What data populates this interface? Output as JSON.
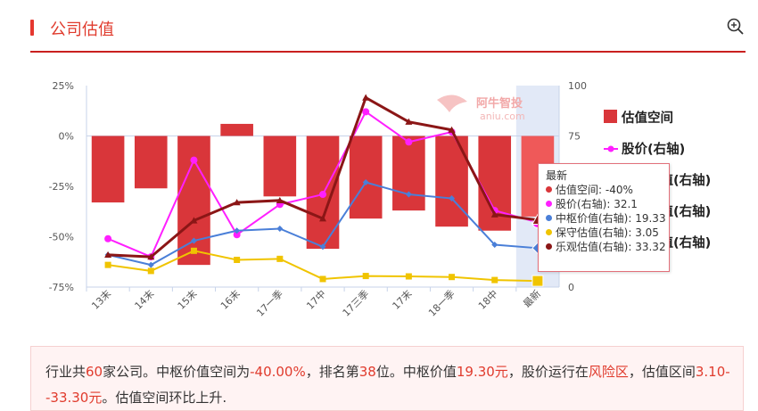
{
  "header": {
    "title": "公司估值"
  },
  "chart_data": {
    "type": "bar",
    "categories": [
      "13末",
      "14末",
      "15末",
      "16末",
      "17一季",
      "17中",
      "17三季",
      "17末",
      "18一季",
      "18中",
      "最新"
    ],
    "left_axis": {
      "ticks": [
        "25%",
        "0%",
        "-25%",
        "-50%",
        "-75%"
      ],
      "range": [
        -75,
        25
      ]
    },
    "right_axis": {
      "ticks": [
        "100",
        "75",
        "50",
        "25",
        "0"
      ],
      "range": [
        0,
        100
      ]
    },
    "series": [
      {
        "name": "估值空间",
        "type": "bar",
        "axis": "left",
        "color": "#d9363a",
        "values": [
          -33,
          -26,
          -64,
          6,
          -30,
          -56,
          -41,
          -37,
          -45,
          -47,
          -40
        ]
      },
      {
        "name": "股价(右轴)",
        "type": "line",
        "axis": "right",
        "color": "#ff1fff",
        "values": [
          24,
          15,
          63,
          26,
          41,
          46,
          87,
          72,
          77,
          38,
          32.1
        ]
      },
      {
        "name": "中枢价值(右轴)",
        "type": "line",
        "axis": "right",
        "color": "#4a7fd8",
        "values": [
          16,
          11,
          23,
          28,
          29,
          20,
          52,
          46,
          44,
          21,
          19.33
        ]
      },
      {
        "name": "保守估值(右轴)",
        "type": "line",
        "axis": "right",
        "color": "#f0c400",
        "values": [
          11,
          8,
          18,
          13.5,
          14,
          4,
          5.5,
          5.3,
          5,
          3.5,
          3.05
        ]
      },
      {
        "name": "乐观估值(右轴)",
        "type": "line",
        "axis": "right",
        "color": "#8b1616",
        "values": [
          16,
          15,
          33,
          42,
          43,
          34,
          94,
          82,
          78,
          36,
          33.32
        ]
      }
    ],
    "legend": [
      "估值空间",
      "股价(右轴)",
      "中枢价值(右轴)",
      "保守估值(右轴)",
      "乐观估值(右轴)"
    ],
    "legend_position": "right",
    "watermark": {
      "brand": "阿牛智投",
      "site": "aniu.com"
    },
    "highlighted_category": "最新",
    "tooltip": {
      "title": "最新",
      "rows": [
        {
          "label": "估值空间: -40%",
          "color": "#d9363a"
        },
        {
          "label": "股价(右轴): 32.1",
          "color": "#ff1fff"
        },
        {
          "label": "中枢价值(右轴): 19.33",
          "color": "#4a7fd8"
        },
        {
          "label": "保守估值(右轴): 3.05",
          "color": "#f0c400"
        },
        {
          "label": "乐观估值(右轴): 33.32",
          "color": "#8b1616"
        }
      ]
    }
  },
  "summary": {
    "p1": "行业共",
    "count": "60",
    "p2": "家公司。中枢价值空间为",
    "space": "-40.00%",
    "p3": "，排名第",
    "rank": "38",
    "p4": "位。中枢价值",
    "value": "19.30元",
    "p5": "，股价运行在",
    "zone": "风险区",
    "p6": "，估值区间",
    "range": "3.10--33.30元",
    "p7": "。估值空间环比上升."
  }
}
